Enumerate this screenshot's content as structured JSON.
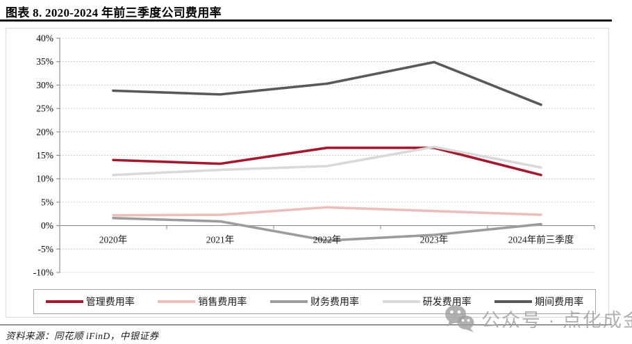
{
  "header": {
    "title": "图表 8. 2020-2024 年前三季度公司费用率"
  },
  "footer": {
    "source": "资料来源：同花顺 iFinD，中银证券"
  },
  "watermark": {
    "icon": "wechat-icon",
    "text": "公众号 · 点化成金"
  },
  "colors": {
    "grid": "#bfbfbf",
    "axis": "#808080",
    "title_rule": "#111111",
    "chart_border": "#d9d9d9",
    "legend_border": "#a6a6a6",
    "watermark": "#9e9e9e"
  },
  "chart_data": {
    "type": "line",
    "title": "图表 8. 2020-2024 年前三季度公司费用率",
    "categories": [
      "2020年",
      "2021年",
      "2022年",
      "2023年",
      "2024年前三季度"
    ],
    "series": [
      {
        "name": "管理费用率",
        "color": "#a5182e",
        "values": [
          14.0,
          13.2,
          16.6,
          16.6,
          10.8
        ]
      },
      {
        "name": "销售费用率",
        "color": "#ecbdbd",
        "values": [
          2.2,
          2.3,
          3.9,
          3.1,
          2.3
        ]
      },
      {
        "name": "财务费用率",
        "color": "#9c9c9c",
        "values": [
          1.6,
          0.9,
          -3.2,
          -2.0,
          0.3
        ]
      },
      {
        "name": "研发费用率",
        "color": "#d9d9d9",
        "values": [
          10.8,
          11.9,
          12.7,
          16.8,
          12.4
        ]
      },
      {
        "name": "期间费用率",
        "color": "#595959",
        "values": [
          28.8,
          28.0,
          30.3,
          34.9,
          25.8
        ]
      }
    ],
    "y_ticks": [
      "40%",
      "35%",
      "30%",
      "25%",
      "20%",
      "15%",
      "10%",
      "5%",
      "0%",
      "-5%",
      "-10%"
    ],
    "ylim": [
      -10,
      40
    ],
    "xlabel": "",
    "ylabel": "",
    "grid": "horizontal-dashed",
    "zero_line": "solid",
    "legend_position": "bottom-box"
  }
}
